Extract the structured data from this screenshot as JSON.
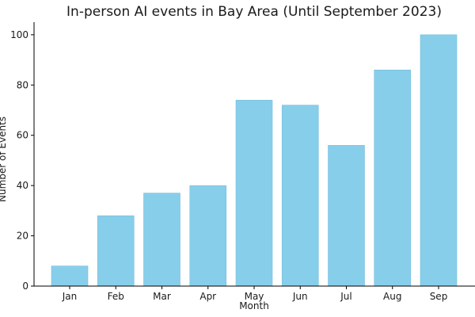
{
  "chart_data": {
    "type": "bar",
    "title": "In-person AI events in Bay Area (Until September 2023)",
    "xlabel": "Month",
    "ylabel": "Number of Events",
    "categories": [
      "Jan",
      "Feb",
      "Mar",
      "Apr",
      "May",
      "Jun",
      "Jul",
      "Aug",
      "Sep"
    ],
    "values": [
      8,
      28,
      37,
      40,
      74,
      72,
      56,
      86,
      100
    ],
    "ylim": [
      0,
      105
    ],
    "yticks": [
      0,
      20,
      40,
      60,
      80,
      100
    ],
    "grid": false,
    "bar_color": "#87ceeb"
  }
}
